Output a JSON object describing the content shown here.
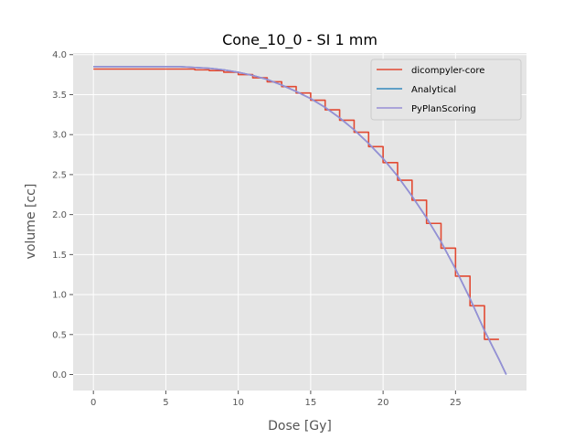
{
  "chart_data": {
    "type": "line",
    "title": "Cone_10_0 - SI 1 mm",
    "xlabel": "Dose [Gy]",
    "ylabel": "volume [cc]",
    "xlim": [
      -1.4,
      29.9
    ],
    "ylim": [
      -0.2,
      4.02
    ],
    "xticks": [
      0,
      5,
      10,
      15,
      20,
      25
    ],
    "yticks": [
      0.0,
      0.5,
      1.0,
      1.5,
      2.0,
      2.5,
      3.0,
      3.5,
      4.0
    ],
    "grid": true,
    "legend_position": "top-right",
    "series": [
      {
        "name": "dicompyler-core",
        "color": "#e24a33",
        "step": true,
        "x": [
          0,
          1,
          2,
          3,
          4,
          5,
          6,
          7,
          8,
          9,
          10,
          11,
          12,
          13,
          14,
          15,
          16,
          17,
          18,
          19,
          20,
          21,
          22,
          23,
          24,
          25,
          26,
          27,
          28
        ],
        "y": [
          3.82,
          3.82,
          3.82,
          3.82,
          3.82,
          3.82,
          3.82,
          3.81,
          3.8,
          3.78,
          3.75,
          3.71,
          3.66,
          3.6,
          3.52,
          3.43,
          3.31,
          3.18,
          3.03,
          2.85,
          2.65,
          2.43,
          2.18,
          1.89,
          1.58,
          1.23,
          0.86,
          0.44,
          0.44
        ]
      },
      {
        "name": "Analytical",
        "color": "#348abd",
        "x": [
          0,
          2,
          4,
          6,
          7,
          8,
          9,
          10,
          11,
          12,
          13,
          14,
          15,
          16,
          17,
          18,
          19,
          20,
          21,
          22,
          23,
          24,
          25,
          26,
          27,
          28,
          28.5
        ],
        "y": [
          3.85,
          3.85,
          3.85,
          3.85,
          3.84,
          3.83,
          3.81,
          3.78,
          3.74,
          3.69,
          3.62,
          3.54,
          3.45,
          3.34,
          3.21,
          3.06,
          2.89,
          2.7,
          2.48,
          2.23,
          1.96,
          1.66,
          1.32,
          0.95,
          0.55,
          0.19,
          0.0
        ]
      },
      {
        "name": "PyPlanScoring",
        "color": "#988ed5",
        "x": [
          0,
          2,
          4,
          6,
          7,
          8,
          9,
          10,
          11,
          12,
          13,
          14,
          15,
          16,
          17,
          18,
          19,
          20,
          21,
          22,
          23,
          24,
          25,
          26,
          27,
          28,
          28.5
        ],
        "y": [
          3.85,
          3.85,
          3.85,
          3.85,
          3.84,
          3.83,
          3.81,
          3.78,
          3.74,
          3.69,
          3.62,
          3.54,
          3.45,
          3.34,
          3.21,
          3.06,
          2.89,
          2.7,
          2.48,
          2.23,
          1.96,
          1.66,
          1.32,
          0.95,
          0.55,
          0.19,
          0.0
        ]
      }
    ]
  }
}
